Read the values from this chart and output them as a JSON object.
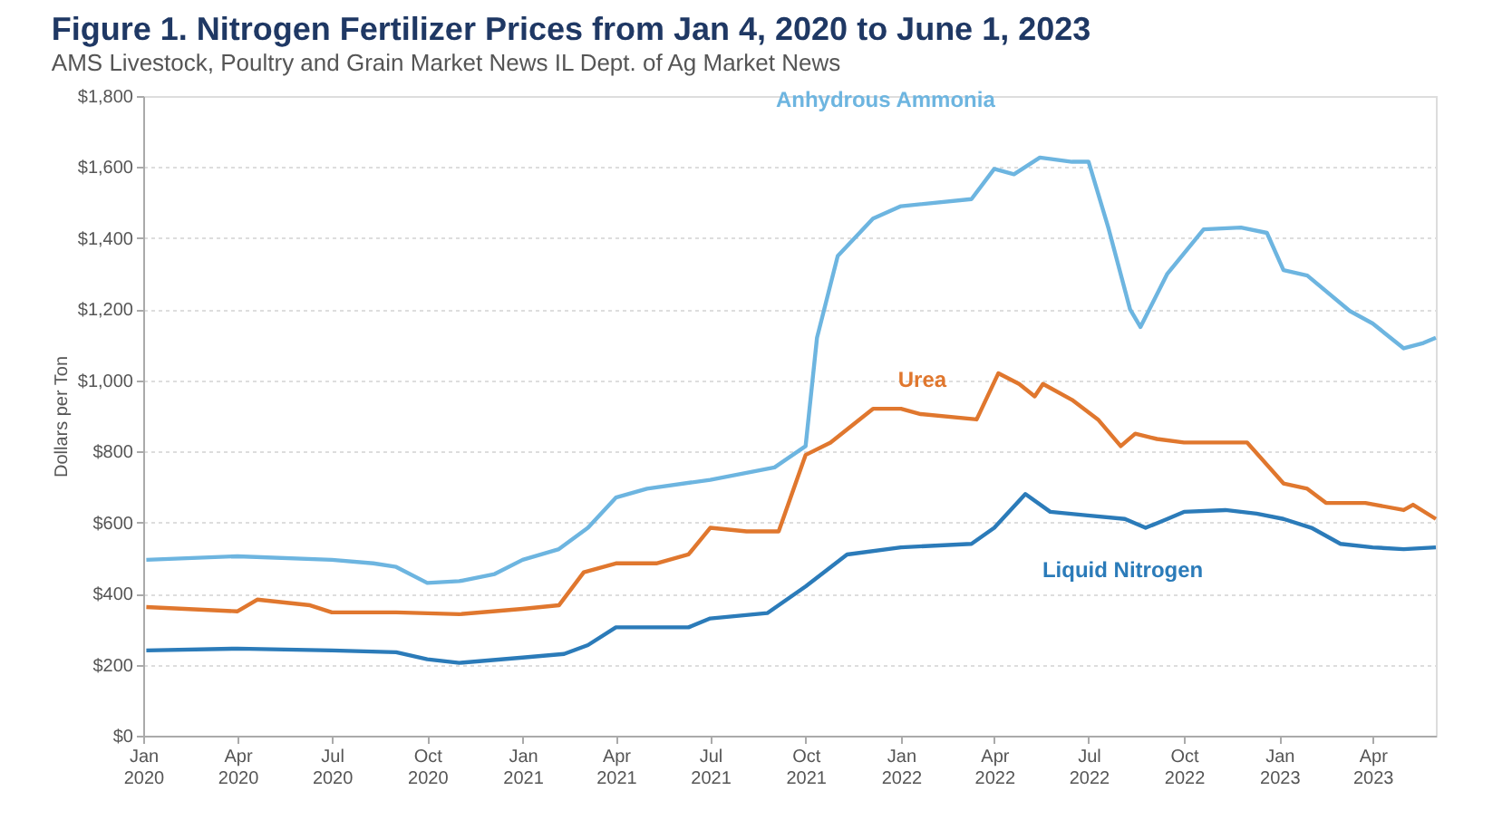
{
  "chart_data": {
    "type": "line",
    "title": "Figure 1.  Nitrogen Fertilizer Prices from Jan 4, 2020 to June 1, 2023",
    "subtitle": "AMS Livestock, Poultry and Grain Market News IL Dept. of Ag Market News",
    "ylabel": "Dollars per Ton",
    "xlim": [
      "2020-01-01",
      "2023-06-01"
    ],
    "ylim": [
      0,
      1800
    ],
    "xticks": [
      {
        "value": "2020-01-01",
        "label": "Jan 2020"
      },
      {
        "value": "2020-04-01",
        "label": "Apr 2020"
      },
      {
        "value": "2020-07-01",
        "label": "Jul 2020"
      },
      {
        "value": "2020-10-01",
        "label": "Oct 2020"
      },
      {
        "value": "2021-01-01",
        "label": "Jan 2021"
      },
      {
        "value": "2021-04-01",
        "label": "Apr 2021"
      },
      {
        "value": "2021-07-01",
        "label": "Jul 2021"
      },
      {
        "value": "2021-10-01",
        "label": "Oct 2021"
      },
      {
        "value": "2022-01-01",
        "label": "Jan 2022"
      },
      {
        "value": "2022-04-01",
        "label": "Apr 2022"
      },
      {
        "value": "2022-07-01",
        "label": "Jul 2022"
      },
      {
        "value": "2022-10-01",
        "label": "Oct 2022"
      },
      {
        "value": "2023-01-01",
        "label": "Jan 2023"
      },
      {
        "value": "2023-04-01",
        "label": "Apr 2023"
      }
    ],
    "yticks": [
      {
        "value": 0,
        "label": "$0"
      },
      {
        "value": 200,
        "label": "$200"
      },
      {
        "value": 400,
        "label": "$400"
      },
      {
        "value": 600,
        "label": "$600"
      },
      {
        "value": 800,
        "label": "$800"
      },
      {
        "value": 1000,
        "label": "$1,000"
      },
      {
        "value": 1200,
        "label": "$1,200"
      },
      {
        "value": 1400,
        "label": "$1,400"
      },
      {
        "value": 1600,
        "label": "$1,600"
      },
      {
        "value": 1800,
        "label": "$1,800"
      }
    ],
    "grid": "y",
    "legend": false,
    "marker": "none",
    "line_style": "solid",
    "series": [
      {
        "name": "Anhydrous Ammonia",
        "color": "#6db5e0",
        "x": [
          "2020-01-04",
          "2020-04-01",
          "2020-07-01",
          "2020-08-10",
          "2020-09-01",
          "2020-10-01",
          "2020-11-01",
          "2020-12-05",
          "2021-01-01",
          "2021-02-05",
          "2021-03-05",
          "2021-04-01",
          "2021-05-01",
          "2021-07-01",
          "2021-09-01",
          "2021-10-01",
          "2021-10-12",
          "2021-11-01",
          "2021-12-05",
          "2022-01-01",
          "2022-03-10",
          "2022-04-01",
          "2022-04-20",
          "2022-05-15",
          "2022-06-15",
          "2022-07-01",
          "2022-07-20",
          "2022-08-10",
          "2022-08-20",
          "2022-09-15",
          "2022-10-20",
          "2022-11-25",
          "2022-12-20",
          "2023-01-05",
          "2023-01-28",
          "2023-03-10",
          "2023-04-01",
          "2023-05-01",
          "2023-05-20",
          "2023-06-01"
        ],
        "values": [
          495,
          505,
          495,
          485,
          475,
          430,
          435,
          455,
          495,
          525,
          585,
          670,
          695,
          720,
          755,
          815,
          1120,
          1350,
          1455,
          1490,
          1510,
          1595,
          1580,
          1627,
          1615,
          1615,
          1430,
          1200,
          1150,
          1300,
          1425,
          1430,
          1415,
          1310,
          1295,
          1195,
          1160,
          1090,
          1105,
          1120
        ]
      },
      {
        "name": "Urea",
        "color": "#e0772e",
        "x": [
          "2020-01-04",
          "2020-04-01",
          "2020-04-20",
          "2020-06-10",
          "2020-07-01",
          "2020-09-01",
          "2020-11-01",
          "2021-01-01",
          "2021-02-05",
          "2021-03-01",
          "2021-04-01",
          "2021-05-10",
          "2021-06-10",
          "2021-07-01",
          "2021-08-05",
          "2021-09-05",
          "2021-10-01",
          "2021-10-25",
          "2021-12-05",
          "2022-01-01",
          "2022-01-20",
          "2022-03-15",
          "2022-04-05",
          "2022-04-25",
          "2022-05-10",
          "2022-05-18",
          "2022-06-15",
          "2022-07-10",
          "2022-08-01",
          "2022-08-15",
          "2022-09-05",
          "2022-10-01",
          "2022-12-01",
          "2023-01-05",
          "2023-01-28",
          "2023-02-15",
          "2023-03-25",
          "2023-05-01",
          "2023-05-10",
          "2023-06-01"
        ],
        "values": [
          362,
          350,
          383,
          367,
          347,
          347,
          342,
          357,
          367,
          460,
          485,
          485,
          510,
          585,
          575,
          575,
          790,
          825,
          920,
          920,
          905,
          890,
          1020,
          990,
          955,
          990,
          945,
          890,
          815,
          850,
          835,
          825,
          825,
          710,
          695,
          655,
          655,
          635,
          650,
          610
        ]
      },
      {
        "name": "Liquid Nitrogen",
        "color": "#2b7bb9",
        "x": [
          "2020-01-04",
          "2020-04-01",
          "2020-07-01",
          "2020-09-01",
          "2020-10-01",
          "2020-11-01",
          "2021-01-01",
          "2021-02-10",
          "2021-03-05",
          "2021-04-01",
          "2021-06-10",
          "2021-07-01",
          "2021-08-25",
          "2021-10-01",
          "2021-11-10",
          "2022-01-01",
          "2022-03-10",
          "2022-04-01",
          "2022-05-01",
          "2022-05-25",
          "2022-06-30",
          "2022-08-05",
          "2022-08-25",
          "2022-09-15",
          "2022-10-01",
          "2022-11-10",
          "2022-12-10",
          "2023-01-05",
          "2023-02-01",
          "2023-03-01",
          "2023-04-01",
          "2023-05-01",
          "2023-06-01"
        ],
        "values": [
          240,
          245,
          240,
          235,
          215,
          205,
          220,
          230,
          255,
          305,
          305,
          330,
          345,
          420,
          510,
          530,
          540,
          585,
          680,
          630,
          620,
          610,
          585,
          610,
          630,
          635,
          625,
          610,
          585,
          540,
          530,
          525,
          530
        ]
      }
    ]
  }
}
